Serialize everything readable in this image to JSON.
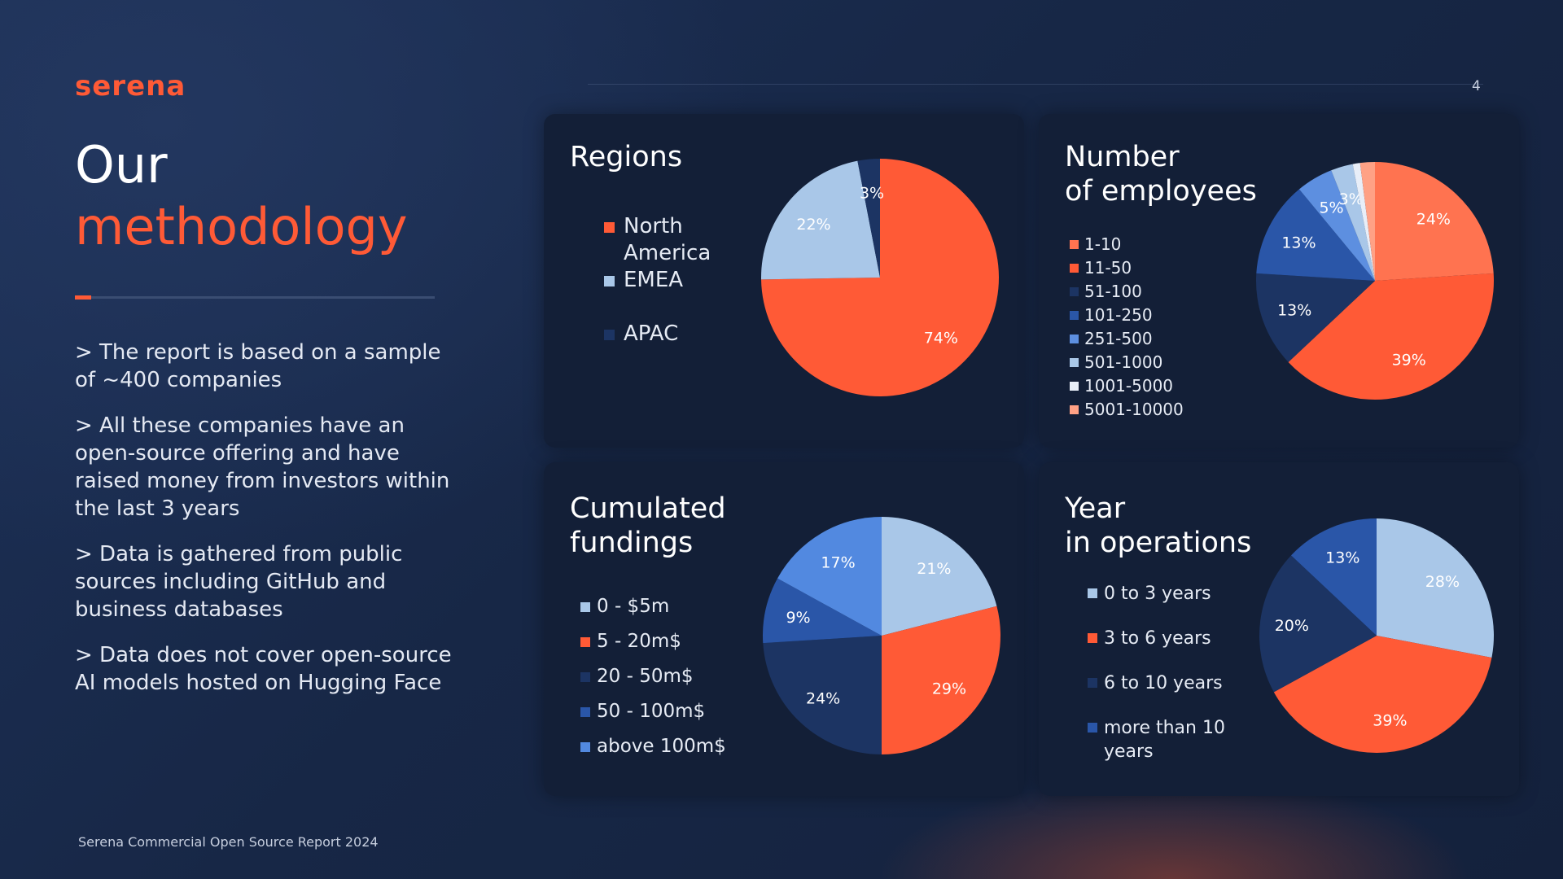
{
  "brand": "serena",
  "page_number": "4",
  "title": {
    "line1": "Our",
    "line2": "methodology"
  },
  "bullets": [
    "> The report is based on a sample of ~400 companies",
    "> All these companies have an open-source offering and have raised money from investors within the last 3 years",
    "> Data is gathered from public sources including GitHub and business databases",
    "> Data does not cover open-source AI models hosted on Hugging Face"
  ],
  "footer": "Serena Commercial Open Source Report 2024",
  "colors": {
    "accent": "#ff5a36",
    "background": "#172746",
    "card": "#131f37"
  },
  "chart_data": [
    {
      "type": "pie",
      "title": "Regions",
      "categories": [
        "North America",
        "EMEA",
        "APAC"
      ],
      "values": [
        74,
        22,
        3
      ],
      "colors": [
        "#ff5a36",
        "#a9c7e8",
        "#1c3463"
      ],
      "labels": [
        "74%",
        "22%",
        "3%"
      ],
      "legend": "left"
    },
    {
      "type": "pie",
      "title": "Number\nof employees",
      "categories": [
        "1-10",
        "11-50",
        "51-100",
        "101-250",
        "251-500",
        "501-1000",
        "1001-5000",
        "5001-10000"
      ],
      "values": [
        24,
        39,
        13,
        13,
        5,
        3,
        1,
        2
      ],
      "colors": [
        "#ff7350",
        "#ff5a36",
        "#1c3463",
        "#2a56a8",
        "#5d8fe0",
        "#a9c7e8",
        "#e8eef8",
        "#ffa185"
      ],
      "labels": [
        "24%",
        "39%",
        "13%",
        "13%",
        "5%",
        "3%",
        "",
        ""
      ],
      "legend": "left"
    },
    {
      "type": "pie",
      "title": "Cumulated\nfundings",
      "categories": [
        "0 - $5m",
        "5 - 20m$",
        "20 - 50m$",
        "50 - 100m$",
        "above 100m$"
      ],
      "values": [
        21,
        29,
        24,
        9,
        17
      ],
      "colors": [
        "#a9c7e8",
        "#ff5a36",
        "#1c3463",
        "#2a56a8",
        "#5289e0"
      ],
      "labels": [
        "21%",
        "29%",
        "24%",
        "9%",
        "17%"
      ],
      "legend": "left"
    },
    {
      "type": "pie",
      "title": "Year\nin operations",
      "categories": [
        "0 to 3 years",
        "3 to 6 years",
        "6 to 10 years",
        "more than 10 years"
      ],
      "values": [
        28,
        39,
        20,
        13
      ],
      "colors": [
        "#a9c7e8",
        "#ff5a36",
        "#1c3463",
        "#2a56a8"
      ],
      "labels": [
        "28%",
        "39%",
        "20%",
        "13%"
      ],
      "legend": "left"
    }
  ]
}
